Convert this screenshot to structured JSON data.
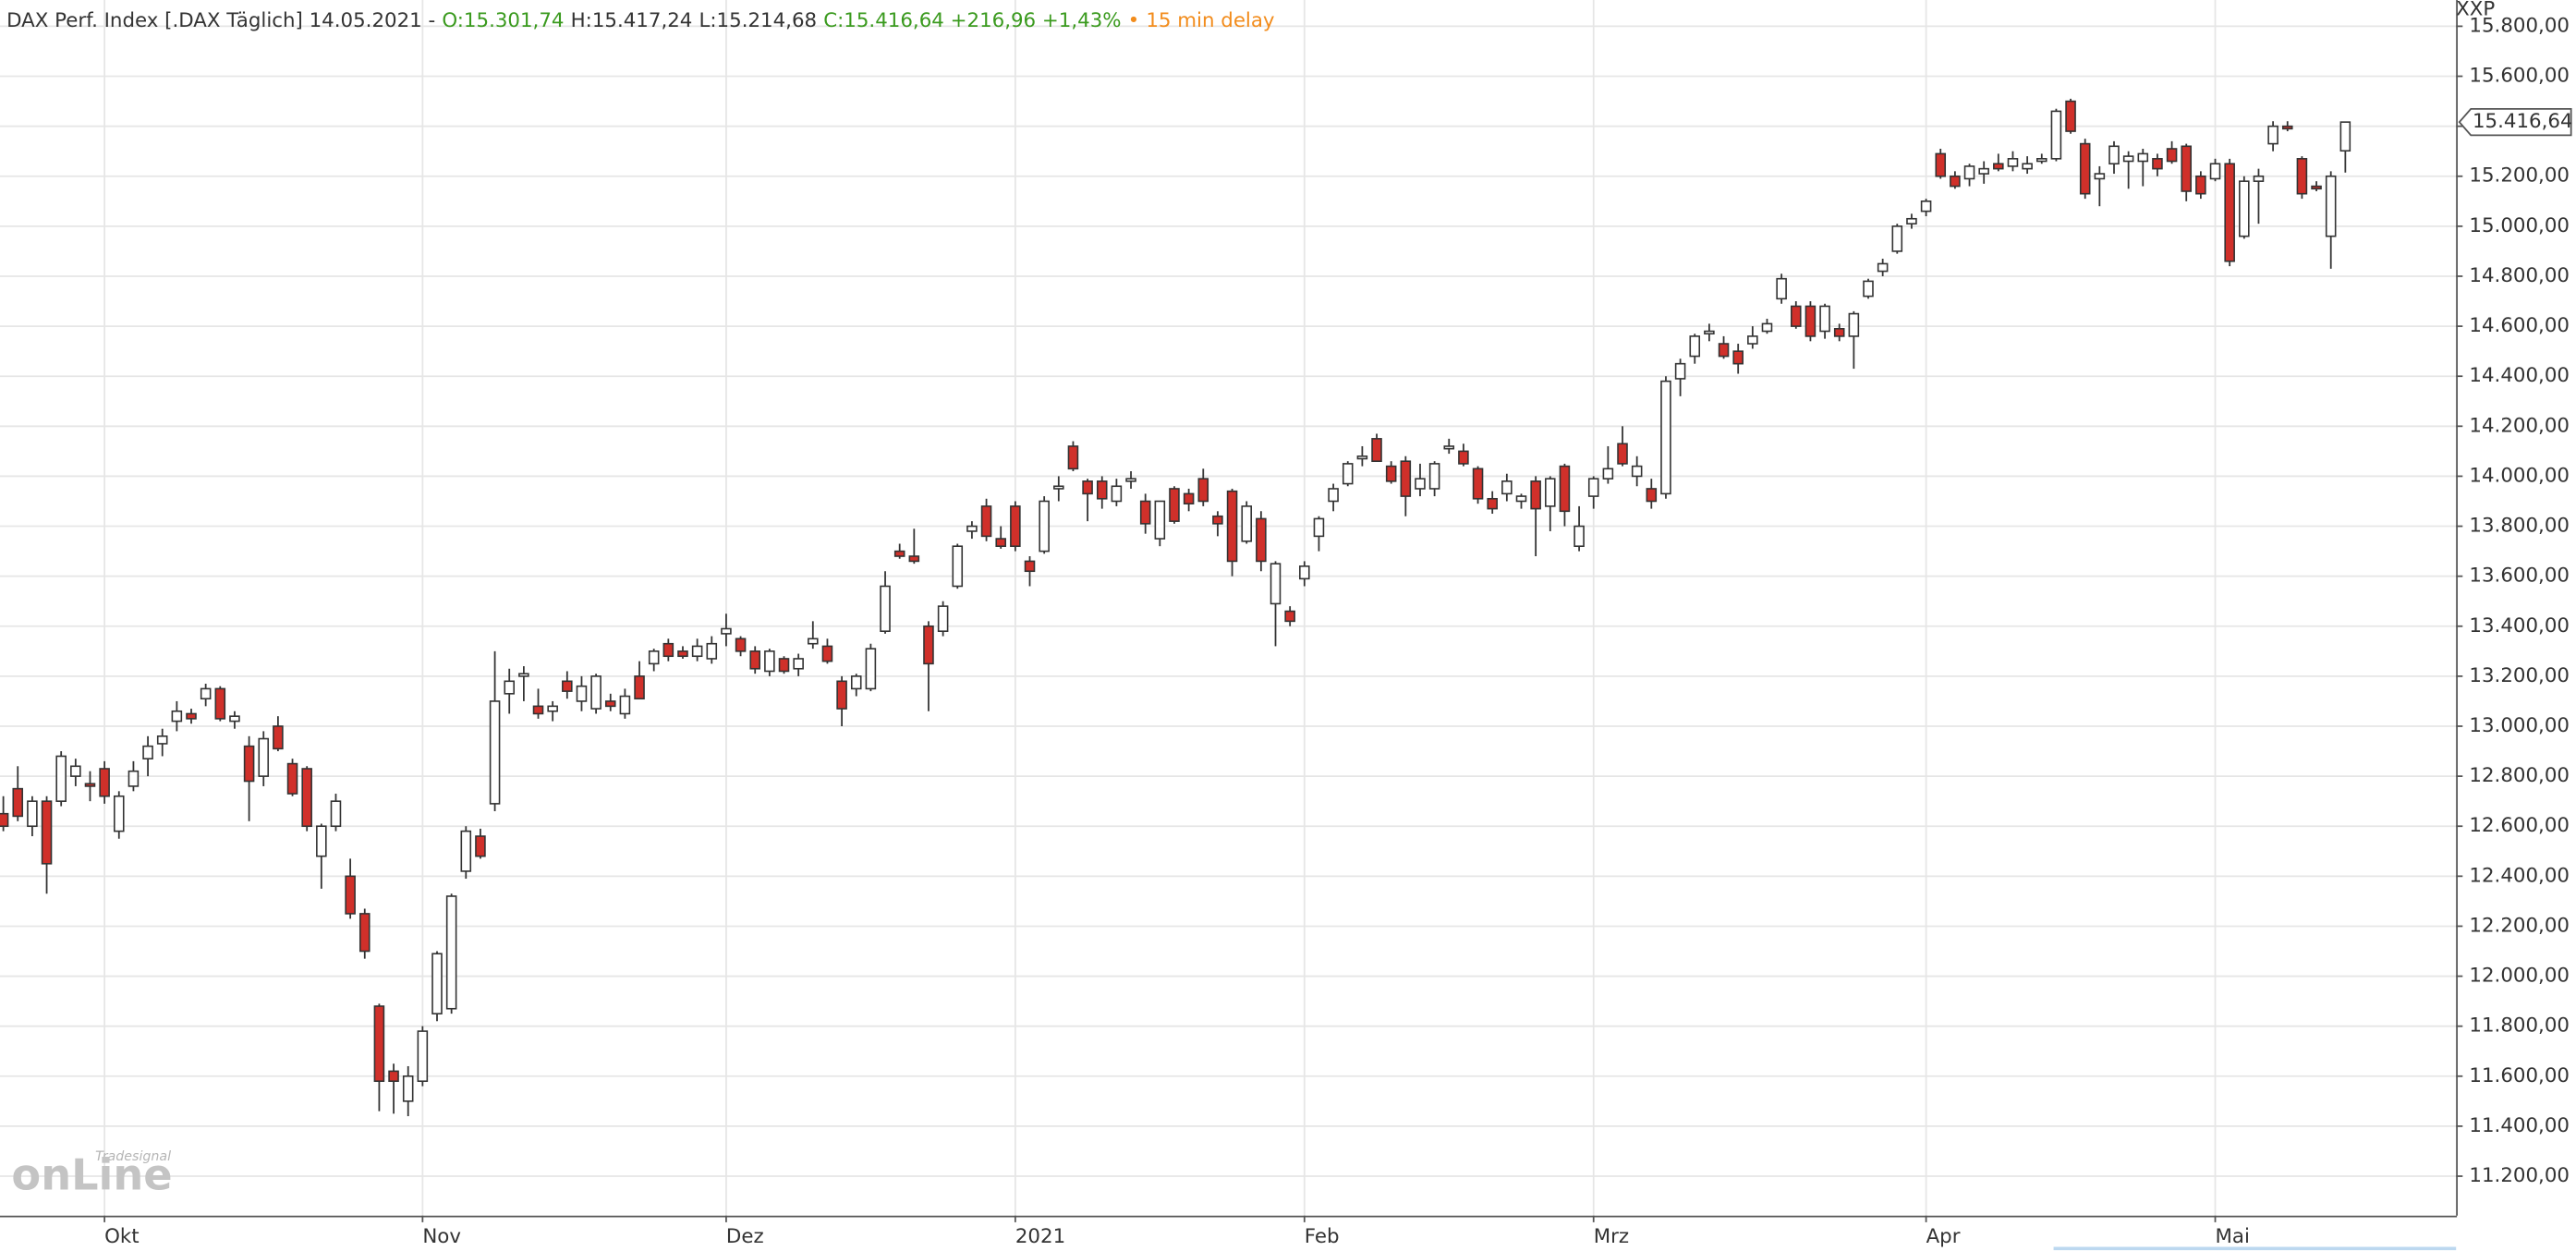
{
  "chart_data": {
    "type": "candlestick",
    "title": "DAX Perf. Index [.DAX Täglich] 14.05.2021 -",
    "open_label": "O:15.301,74",
    "high_label": "H:15.417,24",
    "low_label": "L:15.214,68",
    "close_label": "C:15.416,64 +216,96 +1,43%",
    "delay": "15 min delay",
    "axis_label": "XXP",
    "last_value_label": "15.416,64",
    "logo_small": "Tradesignal",
    "logo": "onLine",
    "up_color": "#ffffff",
    "down_color": "#d0302a",
    "grid": true,
    "xlim": [
      -0.23,
      169.66
    ],
    "xticks": [
      {
        "value": 7,
        "label": "Okt"
      },
      {
        "value": 29,
        "label": "Nov"
      },
      {
        "value": 50,
        "label": "Dez"
      },
      {
        "value": 70,
        "label": "2021"
      },
      {
        "value": 90,
        "label": "Feb"
      },
      {
        "value": 110,
        "label": "Mrz"
      },
      {
        "value": 133,
        "label": "Apr"
      },
      {
        "value": 153,
        "label": "Mai"
      }
    ],
    "ylim": [
      11042,
      15905
    ],
    "yticks": [
      {
        "value": 11200,
        "label": "11.200,00"
      },
      {
        "value": 11400,
        "label": "11.400,00"
      },
      {
        "value": 11600,
        "label": "11.600,00"
      },
      {
        "value": 11800,
        "label": "11.800,00"
      },
      {
        "value": 12000,
        "label": "12.000,00"
      },
      {
        "value": 12200,
        "label": "12.200,00"
      },
      {
        "value": 12400,
        "label": "12.400,00"
      },
      {
        "value": 12600,
        "label": "12.600,00"
      },
      {
        "value": 12800,
        "label": "12.800,00"
      },
      {
        "value": 13000,
        "label": "13.000,00"
      },
      {
        "value": 13200,
        "label": "13.200,00"
      },
      {
        "value": 13400,
        "label": "13.400,00"
      },
      {
        "value": 13600,
        "label": "13.600,00"
      },
      {
        "value": 13800,
        "label": "13.800,00"
      },
      {
        "value": 14000,
        "label": "14.000,00"
      },
      {
        "value": 14200,
        "label": "14.200,00"
      },
      {
        "value": 14400,
        "label": "14.400,00"
      },
      {
        "value": 14600,
        "label": "14.600,00"
      },
      {
        "value": 14800,
        "label": "14.800,00"
      },
      {
        "value": 15000,
        "label": "15.000,00"
      },
      {
        "value": 15200,
        "label": "15.200,00"
      },
      {
        "value": 15400,
        "label": "15.400,00"
      },
      {
        "value": 15600,
        "label": "15.600,00"
      },
      {
        "value": 15800,
        "label": "15.800,00"
      }
    ],
    "open": [
      12650,
      12750,
      12600,
      12700,
      12700,
      12800,
      12770,
      12830,
      12580,
      12760,
      12870,
      12930,
      13020,
      13050,
      13110,
      13150,
      13020,
      12920,
      12800,
      13000,
      12850,
      12830,
      12480,
      12600,
      12400,
      12250,
      11880,
      11620,
      11500,
      11580,
      11850,
      11870,
      12420,
      12560,
      12690,
      13130,
      13200,
      13080,
      13060,
      13180,
      13100,
      13070,
      13100,
      13050,
      13200,
      13250,
      13330,
      13300,
      13280,
      13270,
      13370,
      13350,
      13300,
      13220,
      13270,
      13230,
      13330,
      13320,
      13180,
      13150,
      13150,
      13380,
      13700,
      13680,
      13400,
      13380,
      13560,
      13780,
      13880,
      13750,
      13880,
      13660,
      13700,
      13950,
      14120,
      13980,
      13980,
      13900,
      13980,
      13900,
      13750,
      13950,
      13930,
      13990,
      13840,
      13940,
      13740,
      13830,
      13490,
      13460,
      13590,
      13760,
      13900,
      13970,
      14070,
      14150,
      14040,
      14060,
      13950,
      13950,
      14110,
      14100,
      14030,
      13910,
      13930,
      13900,
      13980,
      13880,
      14040,
      13720,
      13920,
      13990,
      14130,
      14000,
      13950,
      13930,
      14390,
      14480,
      14570,
      14530,
      14500,
      14530,
      14580,
      14710,
      14680,
      14680,
      14580,
      14590,
      14560,
      14720,
      14820,
      14900,
      15010,
      15060,
      15290,
      15200,
      15190,
      15210,
      15250,
      15240,
      15230,
      15260,
      15270,
      15500,
      15330,
      15190,
      15250,
      15260,
      15260,
      15270,
      15310,
      15320,
      15200,
      15190,
      15250,
      14960,
      15180,
      15330,
      15400,
      15270,
      15160,
      14960,
      15301.74
    ],
    "high": [
      12720,
      12840,
      12720,
      12720,
      12900,
      12870,
      12820,
      12860,
      12740,
      12860,
      12960,
      12990,
      13100,
      13070,
      13170,
      13160,
      13060,
      12960,
      12980,
      13040,
      12870,
      12840,
      12610,
      12730,
      12470,
      12270,
      11890,
      11650,
      11640,
      11800,
      12100,
      12330,
      12600,
      12590,
      13300,
      13230,
      13240,
      13150,
      13100,
      13220,
      13200,
      13210,
      13130,
      13150,
      13260,
      13310,
      13350,
      13320,
      13350,
      13360,
      13450,
      13360,
      13320,
      13310,
      13280,
      13290,
      13420,
      13350,
      13200,
      13210,
      13330,
      13620,
      13730,
      13790,
      13420,
      13500,
      13730,
      13820,
      13910,
      13800,
      13900,
      13680,
      13920,
      14000,
      14140,
      13990,
      14000,
      13990,
      14020,
      13930,
      13900,
      13960,
      13950,
      14030,
      13860,
      13950,
      13900,
      13860,
      13660,
      13480,
      13660,
      13840,
      13970,
      14060,
      14120,
      14170,
      14060,
      14080,
      14050,
      14060,
      14150,
      14130,
      14040,
      13940,
      14010,
      13930,
      14000,
      14000,
      14050,
      13880,
      14000,
      14120,
      14200,
      14080,
      13990,
      14400,
      14470,
      14570,
      14610,
      14560,
      14530,
      14600,
      14630,
      14810,
      14700,
      14700,
      14690,
      14610,
      14660,
      14790,
      14870,
      15010,
      15050,
      15110,
      15310,
      15220,
      15250,
      15260,
      15290,
      15300,
      15280,
      15290,
      15470,
      15510,
      15350,
      15240,
      15340,
      15300,
      15310,
      15290,
      15340,
      15330,
      15220,
      15270,
      15270,
      15200,
      15230,
      15420,
      15420,
      15280,
      15180,
      15220,
      15417.24
    ],
    "low": [
      12580,
      12620,
      12560,
      12330,
      12680,
      12760,
      12700,
      12690,
      12550,
      12740,
      12800,
      12880,
      12980,
      13010,
      13080,
      13020,
      12990,
      12620,
      12760,
      12900,
      12720,
      12580,
      12350,
      12580,
      12230,
      12070,
      11460,
      11450,
      11440,
      11560,
      11820,
      11850,
      12390,
      12470,
      12660,
      13050,
      13100,
      13030,
      13020,
      13110,
      13060,
      13050,
      13060,
      13030,
      13120,
      13220,
      13260,
      13270,
      13260,
      13250,
      13320,
      13280,
      13210,
      13200,
      13210,
      13200,
      13310,
      13250,
      13000,
      13120,
      13140,
      13370,
      13670,
      13650,
      13060,
      13360,
      13550,
      13750,
      13740,
      13710,
      13700,
      13560,
      13690,
      13900,
      14020,
      13820,
      13870,
      13880,
      13950,
      13770,
      13720,
      13810,
      13860,
      13880,
      13760,
      13600,
      13730,
      13620,
      13320,
      13400,
      13560,
      13700,
      13860,
      13960,
      14040,
      14060,
      13970,
      13840,
      13920,
      13920,
      14090,
      14040,
      13890,
      13850,
      13900,
      13870,
      13680,
      13780,
      13800,
      13700,
      13870,
      13970,
      14040,
      13960,
      13870,
      13910,
      14320,
      14450,
      14540,
      14470,
      14410,
      14510,
      14570,
      14690,
      14590,
      14540,
      14550,
      14540,
      14430,
      14710,
      14800,
      14890,
      14990,
      15040,
      15190,
      15150,
      15160,
      15170,
      15220,
      15220,
      15210,
      15250,
      15260,
      15370,
      15110,
      15080,
      15210,
      15150,
      15160,
      15200,
      15250,
      15100,
      15110,
      15180,
      14840,
      14950,
      15010,
      15300,
      15380,
      15110,
      15140,
      14830,
      15214.68
    ],
    "close": [
      12600,
      12640,
      12700,
      12450,
      12880,
      12840,
      12760,
      12720,
      12720,
      12820,
      12920,
      12960,
      13060,
      13030,
      13150,
      13030,
      13040,
      12780,
      12950,
      12910,
      12730,
      12600,
      12600,
      12700,
      12250,
      12100,
      11580,
      11580,
      11600,
      11780,
      12090,
      12320,
      12580,
      12480,
      13100,
      13180,
      13210,
      13050,
      13080,
      13140,
      13160,
      13200,
      13080,
      13120,
      13110,
      13300,
      13280,
      13280,
      13320,
      13330,
      13390,
      13300,
      13230,
      13300,
      13220,
      13270,
      13350,
      13260,
      13070,
      13200,
      13310,
      13560,
      13680,
      13660,
      13250,
      13480,
      13720,
      13800,
      13760,
      13720,
      13720,
      13620,
      13900,
      13960,
      14030,
      13930,
      13910,
      13960,
      13990,
      13810,
      13900,
      13820,
      13890,
      13900,
      13810,
      13660,
      13880,
      13660,
      13650,
      13420,
      13640,
      13830,
      13950,
      14050,
      14080,
      14060,
      13980,
      13920,
      13990,
      14050,
      14120,
      14050,
      13910,
      13870,
      13980,
      13920,
      13870,
      13990,
      13860,
      13800,
      13990,
      14030,
      14050,
      14040,
      13900,
      14380,
      14450,
      14560,
      14580,
      14480,
      14450,
      14560,
      14610,
      14790,
      14600,
      14560,
      14680,
      14560,
      14650,
      14780,
      14850,
      15000,
      15030,
      15100,
      15200,
      15160,
      15240,
      15230,
      15230,
      15270,
      15250,
      15270,
      15460,
      15380,
      15130,
      15210,
      15320,
      15280,
      15290,
      15230,
      15260,
      15140,
      15130,
      15250,
      14860,
      15180,
      15200,
      15400,
      15390,
      15130,
      15150,
      15200,
      15416.64
    ]
  }
}
